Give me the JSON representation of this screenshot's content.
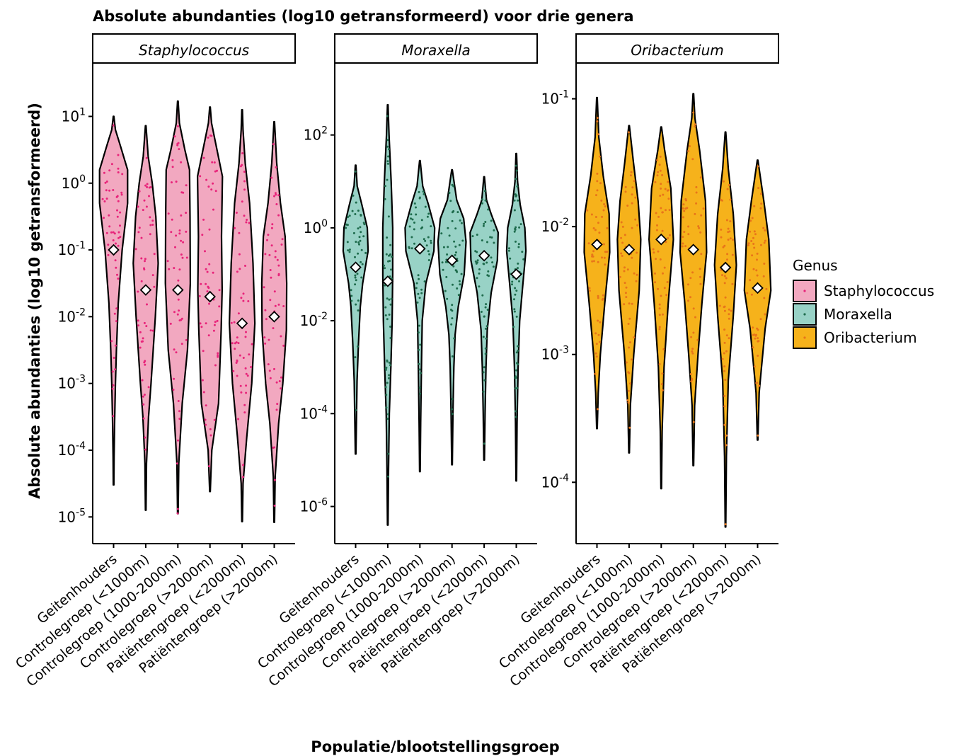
{
  "chart_data": {
    "type": "violin",
    "title": "Absolute abundanties (log10 getransformeerd) voor drie genera",
    "xlabel": "Populatie/blootstellingsgroep",
    "ylabel": "Absolute abundanties (log10 getransformeerd)",
    "y_scale": "log10",
    "categories": [
      "Geitenhouders",
      "Controlegroep (<1000m)",
      "Controlegroep (1000-2000m)",
      "Controlegroep (>2000m)",
      "Patiëntengroep (<2000m)",
      "Patiëntengroep (>2000m)"
    ],
    "legend": {
      "title": "Genus",
      "position": "right",
      "entries": [
        {
          "name": "Staphylococcus",
          "fill": "#f2a8c0",
          "point": "#e8247a"
        },
        {
          "name": "Moraxella",
          "fill": "#98d2c6",
          "point": "#1e6b4c"
        },
        {
          "name": "Oribacterium",
          "fill": "#f6b21b",
          "point": "#e8751a"
        }
      ]
    },
    "facets": [
      {
        "name": "Staphylococcus",
        "fill": "#f2a8c0",
        "point": "#e8247a",
        "ylim_log10": [
          -5.4,
          1.8
        ],
        "ticks": [
          {
            "base": "10",
            "exp": "1",
            "v": 1
          },
          {
            "base": "10",
            "exp": "0",
            "v": 0
          },
          {
            "base": "10",
            "exp": "-1",
            "v": -1
          },
          {
            "base": "10",
            "exp": "-2",
            "v": -2
          },
          {
            "base": "10",
            "exp": "-3",
            "v": -3
          },
          {
            "base": "10",
            "exp": "-4",
            "v": -4
          },
          {
            "base": "10",
            "exp": "-5",
            "v": -5
          }
        ],
        "groups": [
          {
            "min": -4.52,
            "max": 1.0,
            "mean": -1.0,
            "shape": [
              [
                -4.52,
                0.02
              ],
              [
                -4.1,
                0.03
              ],
              [
                -3.55,
                0.07
              ],
              [
                -3.0,
                0.12
              ],
              [
                -2.5,
                0.18
              ],
              [
                -1.8,
                0.3
              ],
              [
                -1.0,
                0.55
              ],
              [
                -0.3,
                0.9
              ],
              [
                0.2,
                0.9
              ],
              [
                0.55,
                0.45
              ],
              [
                0.8,
                0.12
              ],
              [
                1.0,
                0.02
              ]
            ]
          },
          {
            "min": -4.9,
            "max": 0.86,
            "mean": -1.6,
            "shape": [
              [
                -4.9,
                0.02
              ],
              [
                -4.2,
                0.05
              ],
              [
                -3.5,
                0.18
              ],
              [
                -3.0,
                0.34
              ],
              [
                -2.0,
                0.62
              ],
              [
                -1.2,
                0.8
              ],
              [
                -0.5,
                0.65
              ],
              [
                0,
                0.42
              ],
              [
                0.4,
                0.16
              ],
              [
                0.86,
                0.02
              ]
            ]
          },
          {
            "min": -4.95,
            "max": 1.23,
            "mean": -1.6,
            "shape": [
              [
                -4.95,
                0.02
              ],
              [
                -4.2,
                0.06
              ],
              [
                -3.3,
                0.28
              ],
              [
                -2.5,
                0.62
              ],
              [
                -1.5,
                0.8
              ],
              [
                -0.5,
                0.78
              ],
              [
                0.2,
                0.75
              ],
              [
                0.5,
                0.45
              ],
              [
                0.9,
                0.1
              ],
              [
                1.23,
                0.02
              ]
            ]
          },
          {
            "min": -4.62,
            "max": 1.14,
            "mean": -1.7,
            "shape": [
              [
                -4.62,
                0.02
              ],
              [
                -4.0,
                0.12
              ],
              [
                -3.3,
                0.55
              ],
              [
                -2.2,
                0.72
              ],
              [
                -1.6,
                0.78
              ],
              [
                -0.8,
                0.74
              ],
              [
                0.1,
                0.8
              ],
              [
                0.5,
                0.45
              ],
              [
                0.9,
                0.1
              ],
              [
                1.14,
                0.02
              ]
            ]
          },
          {
            "min": -5.07,
            "max": 1.1,
            "mean": -2.1,
            "shape": [
              [
                -5.07,
                0.02
              ],
              [
                -4.5,
                0.06
              ],
              [
                -3.8,
                0.3
              ],
              [
                -3.0,
                0.62
              ],
              [
                -2.1,
                0.82
              ],
              [
                -1.2,
                0.7
              ],
              [
                -0.3,
                0.48
              ],
              [
                0.3,
                0.2
              ],
              [
                0.8,
                0.06
              ],
              [
                1.1,
                0.02
              ]
            ]
          },
          {
            "min": -5.08,
            "max": 0.92,
            "mean": -2.0,
            "shape": [
              [
                -5.08,
                0.02
              ],
              [
                -4.4,
                0.06
              ],
              [
                -3.6,
                0.28
              ],
              [
                -3.0,
                0.55
              ],
              [
                -2.2,
                0.78
              ],
              [
                -1.5,
                0.8
              ],
              [
                -0.8,
                0.7
              ],
              [
                -0.3,
                0.4
              ],
              [
                0.3,
                0.16
              ],
              [
                0.92,
                0.02
              ]
            ]
          }
        ]
      },
      {
        "name": "Moraxella",
        "fill": "#98d2c6",
        "point": "#1e6b4c",
        "ylim_log10": [
          -6.8,
          3.55
        ],
        "ticks": [
          {
            "base": "10",
            "exp": "2",
            "v": 2
          },
          {
            "base": "10",
            "exp": "0",
            "v": 0
          },
          {
            "base": "10",
            "exp": "-2",
            "v": -2
          },
          {
            "base": "10",
            "exp": "-4",
            "v": -4
          },
          {
            "base": "10",
            "exp": "-6",
            "v": -6
          }
        ],
        "groups": [
          {
            "min": -4.87,
            "max": 1.35,
            "mean": -0.85,
            "shape": [
              [
                -4.87,
                0.02
              ],
              [
                -4.2,
                0.05
              ],
              [
                -3.3,
                0.09
              ],
              [
                -2.5,
                0.18
              ],
              [
                -1.7,
                0.3
              ],
              [
                -1.2,
                0.45
              ],
              [
                -0.5,
                0.8
              ],
              [
                0,
                0.75
              ],
              [
                0.5,
                0.4
              ],
              [
                0.9,
                0.1
              ],
              [
                1.35,
                0.02
              ]
            ]
          },
          {
            "min": -6.4,
            "max": 2.65,
            "mean": -1.15,
            "shape": [
              [
                -6.4,
                0.02
              ],
              [
                -5.2,
                0.05
              ],
              [
                -4.0,
                0.1
              ],
              [
                -3.0,
                0.2
              ],
              [
                -2.0,
                0.28
              ],
              [
                -1.0,
                0.32
              ],
              [
                0,
                0.32
              ],
              [
                1.0,
                0.22
              ],
              [
                2.0,
                0.08
              ],
              [
                2.65,
                0.02
              ]
            ]
          },
          {
            "min": -5.25,
            "max": 1.45,
            "mean": -0.45,
            "shape": [
              [
                -5.25,
                0.02
              ],
              [
                -4.2,
                0.05
              ],
              [
                -3.0,
                0.1
              ],
              [
                -2.0,
                0.15
              ],
              [
                -1.2,
                0.38
              ],
              [
                -0.5,
                0.9
              ],
              [
                0,
                0.95
              ],
              [
                0.5,
                0.55
              ],
              [
                0.9,
                0.18
              ],
              [
                1.45,
                0.02
              ]
            ]
          },
          {
            "min": -5.1,
            "max": 1.25,
            "mean": -0.7,
            "shape": [
              [
                -5.1,
                0.02
              ],
              [
                -4.0,
                0.06
              ],
              [
                -3.0,
                0.12
              ],
              [
                -2.3,
                0.2
              ],
              [
                -1.7,
                0.4
              ],
              [
                -1.0,
                0.78
              ],
              [
                -0.3,
                0.9
              ],
              [
                0.2,
                0.75
              ],
              [
                0.6,
                0.3
              ],
              [
                1.25,
                0.02
              ]
            ]
          },
          {
            "min": -5.0,
            "max": 1.1,
            "mean": -0.6,
            "shape": [
              [
                -5.0,
                0.02
              ],
              [
                -4.0,
                0.06
              ],
              [
                -3.0,
                0.12
              ],
              [
                -2.2,
                0.2
              ],
              [
                -1.4,
                0.45
              ],
              [
                -0.7,
                0.85
              ],
              [
                -0.1,
                0.9
              ],
              [
                0.3,
                0.45
              ],
              [
                0.6,
                0.15
              ],
              [
                1.1,
                0.02
              ]
            ]
          },
          {
            "min": -5.45,
            "max": 1.6,
            "mean": -1.0,
            "shape": [
              [
                -5.45,
                0.02
              ],
              [
                -4.2,
                0.05
              ],
              [
                -3.0,
                0.12
              ],
              [
                -2.0,
                0.22
              ],
              [
                -1.3,
                0.4
              ],
              [
                -0.5,
                0.62
              ],
              [
                0,
                0.55
              ],
              [
                0.5,
                0.25
              ],
              [
                1.0,
                0.08
              ],
              [
                1.6,
                0.02
              ]
            ]
          }
        ]
      },
      {
        "name": "Oribacterium",
        "fill": "#f6b21b",
        "point": "#e8751a",
        "ylim_log10": [
          -4.48,
          -0.72
        ],
        "ticks": [
          {
            "base": "10",
            "exp": "-1",
            "v": -1
          },
          {
            "base": "10",
            "exp": "-2",
            "v": -2
          },
          {
            "base": "10",
            "exp": "-3",
            "v": -3
          },
          {
            "base": "10",
            "exp": "-4",
            "v": -4
          }
        ],
        "groups": [
          {
            "min": -3.58,
            "max": -0.99,
            "mean": -2.14,
            "shape": [
              [
                -3.58,
                0.02
              ],
              [
                -3.3,
                0.08
              ],
              [
                -3.0,
                0.22
              ],
              [
                -2.6,
                0.5
              ],
              [
                -2.2,
                0.82
              ],
              [
                -1.9,
                0.78
              ],
              [
                -1.6,
                0.4
              ],
              [
                -1.3,
                0.12
              ],
              [
                -0.99,
                0.02
              ]
            ]
          },
          {
            "min": -3.77,
            "max": -1.21,
            "mean": -2.18,
            "shape": [
              [
                -3.77,
                0.02
              ],
              [
                -3.4,
                0.08
              ],
              [
                -3.0,
                0.3
              ],
              [
                -2.5,
                0.65
              ],
              [
                -2.1,
                0.75
              ],
              [
                -1.8,
                0.58
              ],
              [
                -1.5,
                0.28
              ],
              [
                -1.21,
                0.02
              ]
            ]
          },
          {
            "min": -4.05,
            "max": -1.22,
            "mean": -2.1,
            "shape": [
              [
                -4.05,
                0.02
              ],
              [
                -3.6,
                0.06
              ],
              [
                -3.1,
                0.18
              ],
              [
                -2.6,
                0.45
              ],
              [
                -2.1,
                0.78
              ],
              [
                -1.7,
                0.62
              ],
              [
                -1.4,
                0.22
              ],
              [
                -1.22,
                0.02
              ]
            ]
          },
          {
            "min": -3.87,
            "max": -0.96,
            "mean": -2.18,
            "shape": [
              [
                -3.87,
                0.02
              ],
              [
                -3.4,
                0.08
              ],
              [
                -3.0,
                0.3
              ],
              [
                -2.6,
                0.55
              ],
              [
                -2.2,
                0.85
              ],
              [
                -1.8,
                0.78
              ],
              [
                -1.4,
                0.4
              ],
              [
                -1.15,
                0.1
              ],
              [
                -0.96,
                0.02
              ]
            ]
          },
          {
            "min": -4.35,
            "max": -1.26,
            "mean": -2.32,
            "shape": [
              [
                -4.35,
                0.02
              ],
              [
                -3.8,
                0.06
              ],
              [
                -3.2,
                0.18
              ],
              [
                -2.7,
                0.5
              ],
              [
                -2.3,
                0.7
              ],
              [
                -1.9,
                0.5
              ],
              [
                -1.55,
                0.18
              ],
              [
                -1.26,
                0.02
              ]
            ]
          },
          {
            "min": -3.67,
            "max": -1.48,
            "mean": -2.48,
            "shape": [
              [
                -3.67,
                0.02
              ],
              [
                -3.3,
                0.1
              ],
              [
                -3.1,
                0.25
              ],
              [
                -2.8,
                0.48
              ],
              [
                -2.5,
                0.85
              ],
              [
                -2.1,
                0.72
              ],
              [
                -1.8,
                0.4
              ],
              [
                -1.48,
                0.02
              ]
            ]
          }
        ]
      }
    ]
  }
}
